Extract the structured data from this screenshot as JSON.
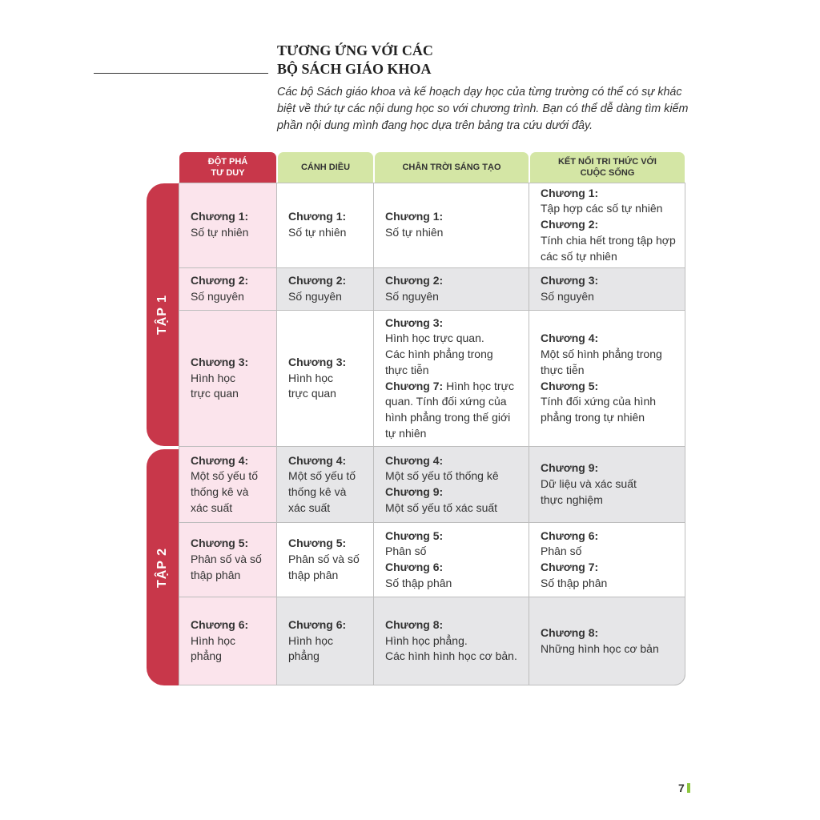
{
  "heading": {
    "line1": "TƯƠNG ỨNG VỚI CÁC",
    "line2": "BỘ SÁCH GIÁO KHOA"
  },
  "intro": "Các bộ Sách giáo khoa và kế hoạch dạy học của từng trường có thể có sự khác biệt về thứ tự các nội dung học so với chương trình. Bạn có thể dễ dàng tìm kiếm phần nội dung mình đang học dựa trên bảng tra cứu dưới đây.",
  "colors": {
    "red": "#c8374a",
    "green": "#d4e6a5",
    "pink": "#fbe4ec",
    "gray": "#e6e6e8",
    "page_mark": "#8cc63f"
  },
  "table": {
    "headers": [
      "ĐỘT PHÁ\nTƯ DUY",
      "CÁNH DIỀU",
      "CHÂN TRỜI SÁNG TẠO",
      "KẾT NỐI TRI THỨC VỚI\nCUỘC SỐNG"
    ],
    "groups": [
      {
        "label": "TẬP 1",
        "rows": [
          0,
          1,
          2
        ]
      },
      {
        "label": "TẬP 2",
        "rows": [
          3,
          4,
          5
        ]
      }
    ],
    "rows": [
      {
        "shade": "white",
        "cells": [
          [
            {
              "b": "Chương 1:",
              "t": "Số tự nhiên"
            }
          ],
          [
            {
              "b": "Chương 1:",
              "t": "Số tự nhiên"
            }
          ],
          [
            {
              "b": "Chương 1:",
              "t": "Số tự nhiên"
            }
          ],
          [
            {
              "b": "Chương 1:",
              "t": "Tập hợp các số tự nhiên"
            },
            {
              "b": "Chương 2:",
              "t": "Tính chia hết trong tập hợp các số tự nhiên"
            }
          ]
        ]
      },
      {
        "shade": "gray",
        "cells": [
          [
            {
              "b": "Chương 2:",
              "t": "Số nguyên"
            }
          ],
          [
            {
              "b": "Chương 2:",
              "t": "Số nguyên"
            }
          ],
          [
            {
              "b": "Chương 2:",
              "t": "Số nguyên"
            }
          ],
          [
            {
              "b": "Chương 3:",
              "t": "Số nguyên"
            }
          ]
        ]
      },
      {
        "shade": "white",
        "cells": [
          [
            {
              "b": "Chương 3:",
              "t": "Hình học\ntrực quan"
            }
          ],
          [
            {
              "b": "Chương 3:",
              "t": "Hình học\ntrực quan"
            }
          ],
          [
            {
              "b": "Chương 3:",
              "t": "Hình học trực quan.\nCác hình phẳng trong\nthực tiễn"
            },
            {
              "b": "Chương 7:",
              "t": "Hình học trực quan. Tính đối xứng của hình phẳng trong thế giới tự nhiên",
              "inline": true
            }
          ],
          [
            {
              "b": "Chương 4:",
              "t": "Một số hình phẳng trong thực tiễn"
            },
            {
              "b": "Chương 5:",
              "t": "Tính đối xứng của hình phẳng trong tự nhiên"
            }
          ]
        ]
      },
      {
        "shade": "gray",
        "cells": [
          [
            {
              "b": "Chương 4:",
              "t": "Một số yếu tố\nthống kê và\nxác suất"
            }
          ],
          [
            {
              "b": "Chương 4:",
              "t": "Một số yếu tố\nthống kê và\nxác suất"
            }
          ],
          [
            {
              "b": "Chương 4:",
              "t": "Một số yếu tố thống kê"
            },
            {
              "b": "Chương 9:",
              "t": "Một số yếu tố xác suất"
            }
          ],
          [
            {
              "b": "Chương 9:",
              "t": "Dữ liệu và xác suất\nthực nghiệm"
            }
          ]
        ]
      },
      {
        "shade": "white",
        "cells": [
          [
            {
              "b": "Chương 5:",
              "t": "Phân số và số\nthập phân"
            }
          ],
          [
            {
              "b": "Chương 5:",
              "t": "Phân số và số\nthập phân"
            }
          ],
          [
            {
              "b": "Chương 5:",
              "t": "Phân số"
            },
            {
              "b": "Chương 6:",
              "t": "Số thập phân"
            }
          ],
          [
            {
              "b": "Chương 6:",
              "t": "Phân số"
            },
            {
              "b": "Chương 7:",
              "t": "Số thập phân"
            }
          ]
        ]
      },
      {
        "shade": "gray",
        "cells": [
          [
            {
              "b": "Chương 6:",
              "t": "Hình học\nphẳng"
            }
          ],
          [
            {
              "b": "Chương 6:",
              "t": "Hình học\nphẳng"
            }
          ],
          [
            {
              "b": "Chương 8:",
              "t": "Hình học phẳng.\nCác hình hình học cơ bản."
            }
          ],
          [
            {
              "b": "Chương 8:",
              "t": "Những hình học cơ bản"
            }
          ]
        ]
      }
    ]
  },
  "page_number": "7"
}
